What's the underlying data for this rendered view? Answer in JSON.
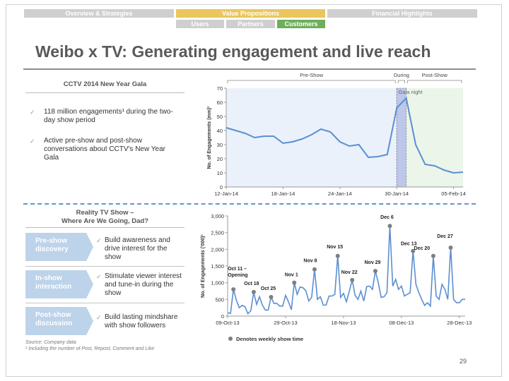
{
  "nav": {
    "top": [
      "Overview & Strategies",
      "Value Propositions",
      "Financial Highlights"
    ],
    "sub": [
      "Users",
      "Partners",
      "Customers"
    ]
  },
  "title": "Weibo x TV:  Generating engagement and live reach",
  "section1": {
    "title": "CCTV 2014 New Year Gala",
    "bullets": [
      "118 million engagements¹ during the two-day show period",
      "Active pre-show and post-show conversations about CCTV's New Year Gala"
    ]
  },
  "section2": {
    "title_line1": "Reality TV Show –",
    "title_line2": "Where Are We Going, Dad?",
    "rows": [
      {
        "stage_line1": "Pre-show",
        "stage_line2": "discovery",
        "text": "Build awareness and drive interest for the show"
      },
      {
        "stage_line1": "In-show",
        "stage_line2": "interaction",
        "text": "Stimulate viewer interest and tune-in during the show"
      },
      {
        "stage_line1": "Post-show",
        "stage_line2": "discussion",
        "text": "Build lasting mindshare with show followers"
      }
    ]
  },
  "footnotes": {
    "source": "Source: Company data",
    "note": "¹  Including the number of Post, Repost, Comment and Like"
  },
  "page_number": "29",
  "colors": {
    "line": "#5b8fd1",
    "marker": "#7f7f7f",
    "gold": "#eac65c",
    "green": "#6fae5a"
  },
  "chart_data": [
    {
      "type": "line",
      "title": "",
      "ylabel": "No. of Engagements (mm)¹",
      "ylim": [
        0,
        70
      ],
      "yticks": [
        0,
        10,
        20,
        30,
        40,
        50,
        60,
        70
      ],
      "xtick_labels": [
        "12-Jan-14",
        "18-Jan-14",
        "24-Jan-14",
        "30-Jan-14",
        "05-Feb-14"
      ],
      "x_start_day": 0,
      "x_end_day": 25,
      "xtick_days": [
        0,
        6,
        12,
        18,
        24
      ],
      "series": [
        {
          "name": "Engagements",
          "values": [
            42,
            40,
            38,
            35,
            36,
            36,
            31,
            32,
            34,
            37,
            41,
            39,
            32,
            29,
            30,
            21,
            21.5,
            23,
            56,
            63,
            30,
            16,
            15,
            12,
            10,
            10.5
          ]
        }
      ],
      "periods": [
        {
          "label": "Pre-Show",
          "start_day": 0,
          "end_day": 18
        },
        {
          "label": "During",
          "start_day": 18,
          "end_day": 19
        },
        {
          "label": "Post-Show",
          "start_day": 19,
          "end_day": 25
        }
      ],
      "annotation": "Gala night"
    },
    {
      "type": "line",
      "title": "",
      "ylabel": "No. of Engagements ('000)¹",
      "ylim": [
        0,
        3000
      ],
      "yticks": [
        0,
        500,
        1000,
        1500,
        2000,
        2500,
        3000
      ],
      "ytick_labels": [
        "0",
        "500",
        "1,000",
        "1,500",
        "2,000",
        "2,500",
        "3,000"
      ],
      "xtick_labels": [
        "09-Oct-13",
        "29-Oct-13",
        "18-Nov-13",
        "08-Dec-13",
        "28-Dec-13"
      ],
      "x_start_day": 0,
      "x_end_day": 82,
      "xtick_days": [
        0,
        20,
        40,
        60,
        80
      ],
      "series": [
        {
          "name": "Engagements",
          "values": [
            100,
            80,
            800,
            480,
            250,
            320,
            280,
            70,
            160,
            720,
            350,
            580,
            330,
            180,
            180,
            570,
            380,
            380,
            300,
            300,
            620,
            430,
            190,
            1000,
            650,
            870,
            850,
            760,
            450,
            560,
            1400,
            500,
            580,
            330,
            330,
            600,
            600,
            650,
            1800,
            560,
            680,
            430,
            740,
            1080,
            620,
            500,
            750,
            450,
            880,
            900,
            800,
            1350,
            1000,
            560,
            580,
            700,
            2700,
            900,
            1100,
            800,
            900,
            600,
            650,
            700,
            1950,
            950,
            700,
            500,
            320,
            400,
            300,
            1800,
            600,
            500,
            950,
            800,
            500,
            2050,
            500,
            400,
            400,
            500,
            500
          ]
        }
      ],
      "show_markers": [
        {
          "label": "Oct 11 – Opening",
          "day": 2,
          "value": 800
        },
        {
          "label": "Oct 18",
          "day": 9,
          "value": 720
        },
        {
          "label": "Oct 25",
          "day": 15,
          "value": 570
        },
        {
          "label": "Nov 1",
          "day": 23,
          "value": 1000
        },
        {
          "label": "Nov 8",
          "day": 30,
          "value": 1400
        },
        {
          "label": "Nov 15",
          "day": 38,
          "value": 1800
        },
        {
          "label": "Nov 22",
          "day": 43,
          "value": 1080
        },
        {
          "label": "Nov 29",
          "day": 51,
          "value": 1350
        },
        {
          "label": "Dec 6",
          "day": 56,
          "value": 2700
        },
        {
          "label": "Dec 13",
          "day": 64,
          "value": 1950
        },
        {
          "label": "Dec 20",
          "day": 71,
          "value": 1800
        },
        {
          "label": "Dec 27",
          "day": 77,
          "value": 2050
        }
      ],
      "legend": "Denotes weekly show time"
    }
  ]
}
